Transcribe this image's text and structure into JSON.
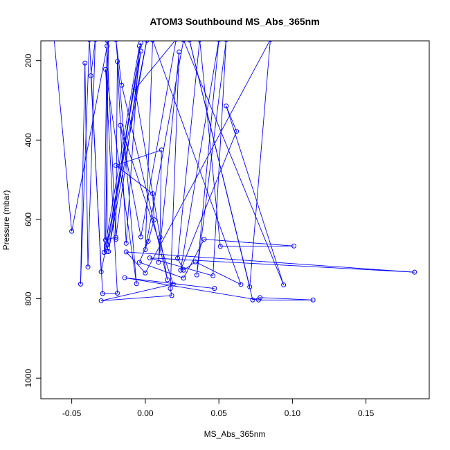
{
  "chart_data": {
    "type": "scatter",
    "title": "ATOM3 Southbound MS_Abs_365nm",
    "xlabel": "MS_Abs_365nm",
    "ylabel": "Pressure (mbar)",
    "xlim": [
      -0.071,
      0.193
    ],
    "ylim": [
      1052,
      150
    ],
    "y_reversed": true,
    "x_ticks": [
      -0.05,
      0.0,
      0.05,
      0.1,
      0.15
    ],
    "x_tick_labels": [
      "-0.05",
      "0.00",
      "0.05",
      "0.10",
      "0.15"
    ],
    "y_ticks": [
      200,
      400,
      600,
      800,
      1000
    ],
    "y_tick_labels": [
      "200",
      "400",
      "600",
      "800",
      "1000"
    ],
    "grid": false,
    "marker": "open-circle",
    "connect_points": true,
    "series_color": "#0000ff",
    "series": [
      {
        "points": [
          {
            "x": -0.062,
            "y": 145
          },
          {
            "x": -0.05,
            "y": 630
          },
          {
            "x": -0.025,
            "y": 145
          },
          {
            "x": -0.027,
            "y": 652
          },
          {
            "x": -0.02,
            "y": 645
          },
          {
            "x": -0.003,
            "y": 176
          },
          {
            "x": -0.026,
            "y": 664
          },
          {
            "x": -0.026,
            "y": 163
          },
          {
            "x": -0.02,
            "y": 650
          },
          {
            "x": -0.019,
            "y": 202
          },
          {
            "x": -0.013,
            "y": 660
          },
          {
            "x": -0.004,
            "y": 163
          },
          {
            "x": -0.028,
            "y": 683
          },
          {
            "x": -0.026,
            "y": 149
          },
          {
            "x": -0.026,
            "y": 681
          },
          {
            "x": -0.003,
            "y": 155
          },
          {
            "x": -0.025,
            "y": 681
          },
          {
            "x": 0.001,
            "y": 149
          },
          {
            "x": -0.03,
            "y": 732
          },
          {
            "x": -0.038,
            "y": 147
          },
          {
            "x": -0.044,
            "y": 763
          },
          {
            "x": -0.041,
            "y": 206
          },
          {
            "x": -0.039,
            "y": 720
          },
          {
            "x": -0.034,
            "y": 147
          },
          {
            "x": -0.037,
            "y": 238
          },
          {
            "x": -0.029,
            "y": 787
          },
          {
            "x": -0.019,
            "y": 786
          },
          {
            "x": -0.027,
            "y": 222
          },
          {
            "x": -0.006,
            "y": 762
          },
          {
            "x": -0.02,
            "y": 147
          },
          {
            "x": -0.016,
            "y": 262
          },
          {
            "x": 0.015,
            "y": 752
          },
          {
            "x": -0.007,
            "y": 272
          },
          {
            "x": 0.021,
            "y": 146
          },
          {
            "x": -0.003,
            "y": 644
          },
          {
            "x": -0.017,
            "y": 363
          },
          {
            "x": 0.019,
            "y": 763
          },
          {
            "x": -0.03,
            "y": 805
          },
          {
            "x": 0.018,
            "y": 792
          },
          {
            "x": 0.017,
            "y": 774
          },
          {
            "x": 0.023,
            "y": 178
          },
          {
            "x": 0.009,
            "y": 708
          },
          {
            "x": 0.01,
            "y": 645
          },
          {
            "x": 0.011,
            "y": 425
          },
          {
            "x": -0.02,
            "y": 464
          },
          {
            "x": 0.005,
            "y": 535
          },
          {
            "x": 0.006,
            "y": 601
          },
          {
            "x": 0.002,
            "y": 655
          },
          {
            "x": -0.004,
            "y": 708
          },
          {
            "x": 0.026,
            "y": 748
          },
          {
            "x": 0.04,
            "y": 650
          },
          {
            "x": 0.101,
            "y": 667
          },
          {
            "x": 0.051,
            "y": 668
          },
          {
            "x": 0.037,
            "y": 147
          },
          {
            "x": 0.022,
            "y": 698
          },
          {
            "x": 0.026,
            "y": 728
          },
          {
            "x": 0.034,
            "y": 707
          },
          {
            "x": 0.065,
            "y": 764
          },
          {
            "x": 0.005,
            "y": 148
          },
          {
            "x": 0.0,
            "y": 676
          },
          {
            "x": 0.026,
            "y": 148
          },
          {
            "x": 0.094,
            "y": 765
          },
          {
            "x": 0.055,
            "y": 314
          },
          {
            "x": 0.062,
            "y": 378
          },
          {
            "x": 0.024,
            "y": 728
          },
          {
            "x": 0.05,
            "y": 147
          },
          {
            "x": 0.035,
            "y": 740
          },
          {
            "x": 0.055,
            "y": 147
          },
          {
            "x": 0.046,
            "y": 742
          },
          {
            "x": 0.003,
            "y": 697
          },
          {
            "x": 0.183,
            "y": 733
          },
          {
            "x": -0.013,
            "y": 682
          },
          {
            "x": 0.0,
            "y": 735
          },
          {
            "x": 0.085,
            "y": 147
          },
          {
            "x": 0.071,
            "y": 770
          },
          {
            "x": 0.03,
            "y": 148
          },
          {
            "x": 0.073,
            "y": 803
          },
          {
            "x": 0.078,
            "y": 797
          },
          {
            "x": 0.114,
            "y": 803
          },
          {
            "x": 0.077,
            "y": 803
          },
          {
            "x": -0.014,
            "y": 747
          },
          {
            "x": 0.047,
            "y": 774
          }
        ]
      }
    ]
  }
}
